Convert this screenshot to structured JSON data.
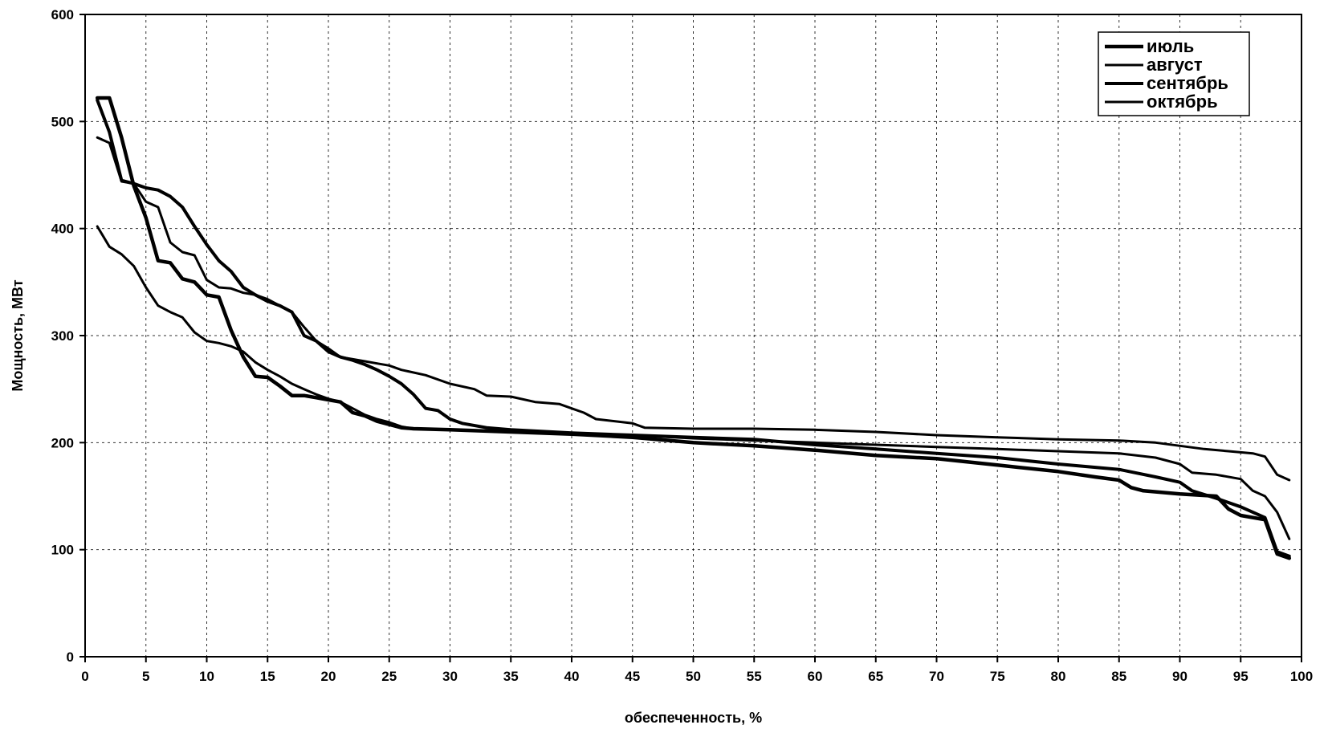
{
  "chart_data": {
    "type": "line",
    "title": "",
    "xlabel": "обеспеченность, %",
    "ylabel": "Мощность, МВт",
    "xlim": [
      0,
      100
    ],
    "ylim": [
      0,
      600
    ],
    "x_ticks": [
      0,
      5,
      10,
      15,
      20,
      25,
      30,
      35,
      40,
      45,
      50,
      55,
      60,
      65,
      70,
      75,
      80,
      85,
      90,
      95,
      100
    ],
    "y_ticks": [
      0,
      100,
      200,
      300,
      400,
      500,
      600
    ],
    "grid": true,
    "legend_position": "top-right",
    "series": [
      {
        "name": "июль",
        "color": "#000000",
        "width": 4.5,
        "points": [
          [
            1,
            522
          ],
          [
            2,
            522
          ],
          [
            3,
            485
          ],
          [
            4,
            440
          ],
          [
            5,
            410
          ],
          [
            6,
            370
          ],
          [
            7,
            368
          ],
          [
            8,
            353
          ],
          [
            9,
            350
          ],
          [
            10,
            338
          ],
          [
            11,
            336
          ],
          [
            12,
            305
          ],
          [
            13,
            280
          ],
          [
            14,
            262
          ],
          [
            15,
            261
          ],
          [
            16,
            253
          ],
          [
            17,
            244
          ],
          [
            18,
            244
          ],
          [
            19,
            242
          ],
          [
            20,
            240
          ],
          [
            21,
            238
          ],
          [
            22,
            228
          ],
          [
            23,
            225
          ],
          [
            24,
            220
          ],
          [
            25,
            217
          ],
          [
            26,
            214
          ],
          [
            27,
            213
          ],
          [
            30,
            212
          ],
          [
            35,
            210
          ],
          [
            40,
            208
          ],
          [
            45,
            205
          ],
          [
            50,
            200
          ],
          [
            55,
            197
          ],
          [
            60,
            193
          ],
          [
            65,
            188
          ],
          [
            70,
            185
          ],
          [
            75,
            179
          ],
          [
            80,
            173
          ],
          [
            83,
            168
          ],
          [
            85,
            165
          ],
          [
            86,
            158
          ],
          [
            87,
            155
          ],
          [
            90,
            152
          ],
          [
            93,
            150
          ],
          [
            94,
            138
          ],
          [
            95,
            132
          ],
          [
            97,
            128
          ],
          [
            98,
            96
          ],
          [
            99,
            92
          ]
        ]
      },
      {
        "name": "август",
        "color": "#000000",
        "width": 3,
        "points": [
          [
            1,
            402
          ],
          [
            2,
            383
          ],
          [
            3,
            376
          ],
          [
            4,
            365
          ],
          [
            5,
            345
          ],
          [
            6,
            328
          ],
          [
            7,
            322
          ],
          [
            8,
            317
          ],
          [
            9,
            303
          ],
          [
            10,
            295
          ],
          [
            11,
            293
          ],
          [
            12,
            290
          ],
          [
            13,
            285
          ],
          [
            14,
            275
          ],
          [
            15,
            268
          ],
          [
            16,
            262
          ],
          [
            17,
            255
          ],
          [
            18,
            250
          ],
          [
            19,
            245
          ],
          [
            20,
            241
          ],
          [
            21,
            238
          ],
          [
            22,
            232
          ],
          [
            23,
            226
          ],
          [
            24,
            222
          ],
          [
            25,
            219
          ],
          [
            26,
            215
          ],
          [
            27,
            213
          ],
          [
            30,
            212
          ],
          [
            35,
            210
          ],
          [
            40,
            208
          ],
          [
            45,
            207
          ],
          [
            50,
            204
          ],
          [
            55,
            202
          ],
          [
            60,
            200
          ],
          [
            65,
            198
          ],
          [
            70,
            196
          ],
          [
            75,
            194
          ],
          [
            80,
            192
          ],
          [
            85,
            190
          ],
          [
            88,
            186
          ],
          [
            90,
            180
          ],
          [
            91,
            172
          ],
          [
            93,
            170
          ],
          [
            95,
            166
          ],
          [
            96,
            155
          ],
          [
            97,
            150
          ],
          [
            98,
            135
          ],
          [
            99,
            110
          ]
        ]
      },
      {
        "name": "сентябрь",
        "color": "#000000",
        "width": 4,
        "points": [
          [
            1,
            520
          ],
          [
            2,
            490
          ],
          [
            3,
            445
          ],
          [
            4,
            442
          ],
          [
            5,
            438
          ],
          [
            6,
            436
          ],
          [
            7,
            430
          ],
          [
            8,
            420
          ],
          [
            9,
            402
          ],
          [
            10,
            385
          ],
          [
            11,
            370
          ],
          [
            12,
            360
          ],
          [
            13,
            345
          ],
          [
            14,
            338
          ],
          [
            15,
            332
          ],
          [
            16,
            328
          ],
          [
            17,
            322
          ],
          [
            18,
            300
          ],
          [
            19,
            295
          ],
          [
            20,
            285
          ],
          [
            21,
            280
          ],
          [
            22,
            277
          ],
          [
            23,
            273
          ],
          [
            24,
            268
          ],
          [
            25,
            262
          ],
          [
            26,
            255
          ],
          [
            27,
            245
          ],
          [
            28,
            232
          ],
          [
            29,
            230
          ],
          [
            30,
            222
          ],
          [
            31,
            218
          ],
          [
            33,
            214
          ],
          [
            35,
            212
          ],
          [
            40,
            209
          ],
          [
            45,
            207
          ],
          [
            50,
            205
          ],
          [
            55,
            203
          ],
          [
            60,
            198
          ],
          [
            65,
            194
          ],
          [
            70,
            190
          ],
          [
            75,
            186
          ],
          [
            80,
            180
          ],
          [
            85,
            175
          ],
          [
            88,
            168
          ],
          [
            90,
            163
          ],
          [
            91,
            155
          ],
          [
            93,
            148
          ],
          [
            95,
            140
          ],
          [
            97,
            130
          ],
          [
            98,
            98
          ],
          [
            99,
            94
          ]
        ]
      },
      {
        "name": "октябрь",
        "color": "#000000",
        "width": 3,
        "points": [
          [
            1,
            485
          ],
          [
            2,
            480
          ],
          [
            3,
            444
          ],
          [
            4,
            442
          ],
          [
            5,
            425
          ],
          [
            6,
            420
          ],
          [
            7,
            387
          ],
          [
            8,
            378
          ],
          [
            9,
            375
          ],
          [
            10,
            352
          ],
          [
            11,
            345
          ],
          [
            12,
            344
          ],
          [
            13,
            340
          ],
          [
            14,
            338
          ],
          [
            15,
            334
          ],
          [
            16,
            328
          ],
          [
            17,
            322
          ],
          [
            18,
            308
          ],
          [
            19,
            295
          ],
          [
            20,
            288
          ],
          [
            21,
            280
          ],
          [
            22,
            278
          ],
          [
            23,
            276
          ],
          [
            24,
            274
          ],
          [
            25,
            272
          ],
          [
            26,
            268
          ],
          [
            28,
            263
          ],
          [
            30,
            255
          ],
          [
            32,
            250
          ],
          [
            33,
            244
          ],
          [
            35,
            243
          ],
          [
            37,
            238
          ],
          [
            39,
            236
          ],
          [
            40,
            232
          ],
          [
            41,
            228
          ],
          [
            42,
            222
          ],
          [
            45,
            218
          ],
          [
            46,
            214
          ],
          [
            50,
            213
          ],
          [
            55,
            213
          ],
          [
            60,
            212
          ],
          [
            65,
            210
          ],
          [
            70,
            207
          ],
          [
            75,
            205
          ],
          [
            80,
            203
          ],
          [
            85,
            202
          ],
          [
            88,
            200
          ],
          [
            90,
            197
          ],
          [
            92,
            194
          ],
          [
            94,
            192
          ],
          [
            96,
            190
          ],
          [
            97,
            187
          ],
          [
            98,
            170
          ],
          [
            99,
            165
          ]
        ]
      }
    ]
  }
}
